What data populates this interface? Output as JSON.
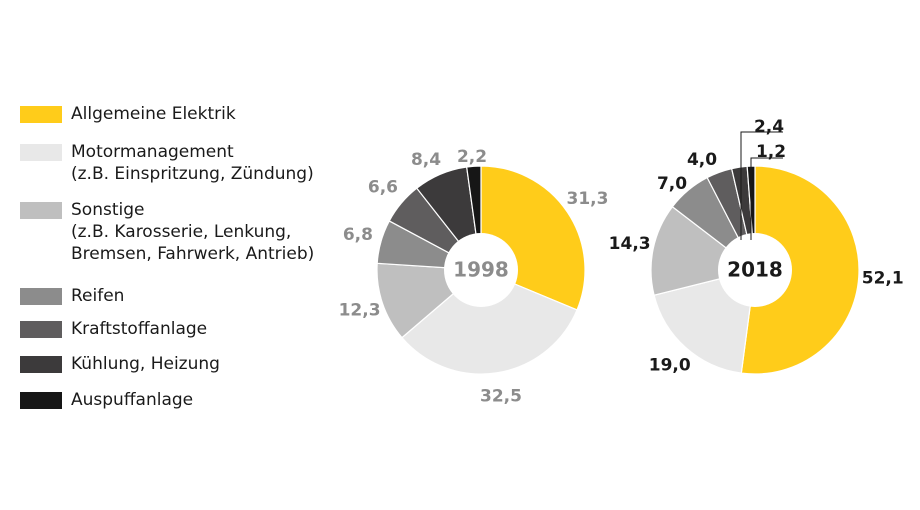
{
  "chart_data": [
    {
      "type": "pie",
      "title": "1998",
      "categories": [
        "Allgemeine Elektrik",
        "Motormanagement",
        "Sonstige",
        "Reifen",
        "Kraftstoffanlage",
        "Kühlung, Heizung",
        "Auspuffanlage"
      ],
      "values": [
        31.3,
        32.5,
        12.3,
        6.8,
        6.6,
        8.4,
        2.2
      ],
      "labels": [
        "31,3",
        "32,5",
        "12,3",
        "6,8",
        "6,6",
        "8,4",
        "2,2"
      ]
    },
    {
      "type": "pie",
      "title": "2018",
      "categories": [
        "Allgemeine Elektrik",
        "Motormanagement",
        "Sonstige",
        "Reifen",
        "Kraftstoffanlage",
        "Kühlung, Heizung",
        "Auspuffanlage"
      ],
      "values": [
        52.1,
        19.0,
        14.3,
        7.0,
        4.0,
        2.4,
        1.2
      ],
      "labels": [
        "52,1",
        "19,0",
        "14,3",
        "7,0",
        "4,0",
        "2,4",
        "1,2"
      ]
    }
  ],
  "legend": [
    {
      "label": "Allgemeine Elektrik",
      "sub": "",
      "color": "#FFCC1A"
    },
    {
      "label": "Motormanagement",
      "sub": "(z.B. Einspritzung, Zündung)",
      "color": "#E8E8E8"
    },
    {
      "label": "Sonstige",
      "sub": "(z.B. Karosserie, Lenkung, Bremsen, Fahrwerk, Antrieb)",
      "color": "#BFBFBF"
    },
    {
      "label": "Reifen",
      "sub": "",
      "color": "#8C8C8C"
    },
    {
      "label": "Kraftstoffanlage",
      "sub": "",
      "color": "#5F5D5E"
    },
    {
      "label": "Kühlung, Heizung",
      "sub": "",
      "color": "#3C3A3B"
    },
    {
      "label": "Auspuffanlage",
      "sub": "",
      "color": "#161616"
    }
  ],
  "colors": {
    "label_1998": "#8C8C8C",
    "label_2018": "#1A1A1A",
    "center_fill": "#FFFFFF"
  }
}
